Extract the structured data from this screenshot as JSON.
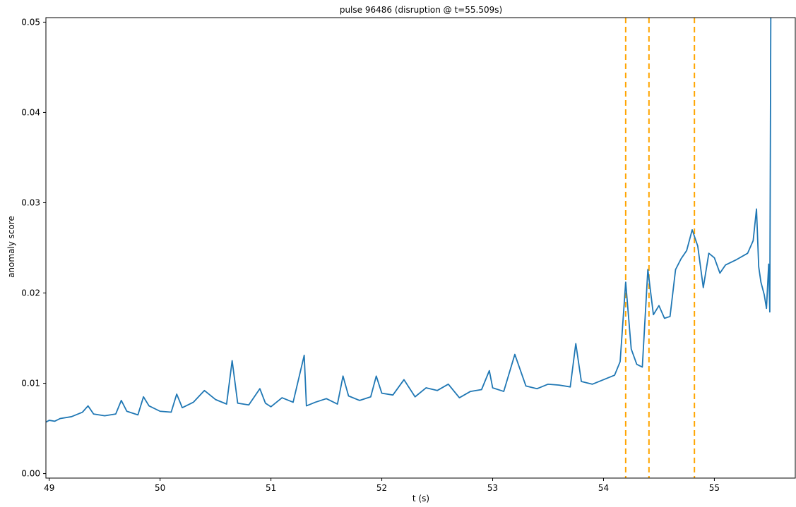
{
  "chart_data": {
    "type": "line",
    "title": "pulse 96486 (disruption @ t=55.509s)",
    "xlabel": "t (s)",
    "ylabel": "anomaly score",
    "xlim": [
      48.97,
      55.73
    ],
    "ylim": [
      -0.0005,
      0.0505
    ],
    "x_ticks": [
      49,
      50,
      51,
      52,
      53,
      54,
      55
    ],
    "x_tick_labels": [
      "49",
      "50",
      "51",
      "52",
      "53",
      "54",
      "55"
    ],
    "y_ticks": [
      0.0,
      0.01,
      0.02,
      0.03,
      0.04,
      0.05
    ],
    "y_tick_labels": [
      "0.00",
      "0.01",
      "0.02",
      "0.03",
      "0.04",
      "0.05"
    ],
    "grid": false,
    "legend": "none",
    "colors": {
      "series": "#1f77b4",
      "markers": "#ffa500"
    },
    "series": [
      {
        "x": [
          48.97,
          49.0,
          49.05,
          49.1,
          49.2,
          49.3,
          49.35,
          49.4,
          49.5,
          49.6,
          49.65,
          49.7,
          49.8,
          49.85,
          49.9,
          50.0,
          50.1,
          50.15,
          50.2,
          50.3,
          50.4,
          50.5,
          50.6,
          50.65,
          50.7,
          50.8,
          50.9,
          50.95,
          51.0,
          51.1,
          51.2,
          51.3,
          51.32,
          51.4,
          51.5,
          51.6,
          51.65,
          51.7,
          51.8,
          51.9,
          51.95,
          52.0,
          52.1,
          52.2,
          52.3,
          52.4,
          52.5,
          52.6,
          52.7,
          52.8,
          52.9,
          52.97,
          53.0,
          53.1,
          53.2,
          53.3,
          53.4,
          53.5,
          53.6,
          53.7,
          53.75,
          53.8,
          53.9,
          54.0,
          54.1,
          54.15,
          54.2,
          54.25,
          54.3,
          54.35,
          54.4,
          54.45,
          54.5,
          54.55,
          54.6,
          54.65,
          54.7,
          54.75,
          54.8,
          54.85,
          54.9,
          54.95,
          55.0,
          55.05,
          55.1,
          55.2,
          55.3,
          55.35,
          55.38,
          55.4,
          55.42,
          55.45,
          55.47,
          55.49,
          55.5,
          55.509
        ],
        "y": [
          0.0057,
          0.0059,
          0.0058,
          0.0061,
          0.0063,
          0.0068,
          0.0075,
          0.0066,
          0.0064,
          0.0066,
          0.0081,
          0.0069,
          0.0065,
          0.0085,
          0.0075,
          0.0069,
          0.0068,
          0.0088,
          0.0073,
          0.0079,
          0.0092,
          0.0082,
          0.0077,
          0.0125,
          0.0078,
          0.0076,
          0.0094,
          0.0078,
          0.0074,
          0.0084,
          0.0079,
          0.0131,
          0.0075,
          0.0079,
          0.0083,
          0.0077,
          0.0108,
          0.0086,
          0.0081,
          0.0085,
          0.0108,
          0.0089,
          0.0087,
          0.0104,
          0.0085,
          0.0095,
          0.0092,
          0.0099,
          0.0084,
          0.0091,
          0.0093,
          0.0114,
          0.0095,
          0.0091,
          0.0132,
          0.0097,
          0.0094,
          0.0099,
          0.0098,
          0.0096,
          0.0144,
          0.0102,
          0.0099,
          0.0104,
          0.0109,
          0.0124,
          0.0212,
          0.0138,
          0.0121,
          0.0118,
          0.0226,
          0.0176,
          0.0186,
          0.0172,
          0.0174,
          0.0226,
          0.0238,
          0.0247,
          0.027,
          0.0252,
          0.0206,
          0.0244,
          0.0239,
          0.0222,
          0.0231,
          0.0237,
          0.0244,
          0.0258,
          0.0293,
          0.0229,
          0.0212,
          0.0198,
          0.0183,
          0.0232,
          0.0179,
          0.0505
        ]
      }
    ],
    "vlines": [
      54.2,
      54.41,
      54.82
    ]
  }
}
